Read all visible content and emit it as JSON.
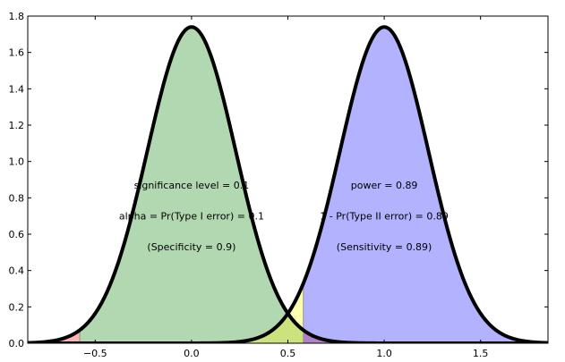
{
  "chart_data": {
    "type": "area",
    "title": "",
    "xlabel": "",
    "ylabel": "",
    "xlim": [
      -0.85,
      1.85
    ],
    "ylim": [
      0.0,
      1.8
    ],
    "x_ticks": [
      {
        "value": -0.5,
        "label": "−0.5"
      },
      {
        "value": 0.0,
        "label": "0.0"
      },
      {
        "value": 0.5,
        "label": "0.5"
      },
      {
        "value": 1.0,
        "label": "1.0"
      },
      {
        "value": 1.5,
        "label": "1.5"
      }
    ],
    "y_ticks": [
      {
        "value": 0.0,
        "label": "0.0"
      },
      {
        "value": 0.2,
        "label": "0.2"
      },
      {
        "value": 0.4,
        "label": "0.4"
      },
      {
        "value": 0.6,
        "label": "0.6"
      },
      {
        "value": 0.8,
        "label": "0.8"
      },
      {
        "value": 1.0,
        "label": "1.0"
      },
      {
        "value": 1.2,
        "label": "1.2"
      },
      {
        "value": 1.4,
        "label": "1.4"
      },
      {
        "value": 1.6,
        "label": "1.6"
      },
      {
        "value": 1.8,
        "label": "1.8"
      }
    ],
    "grid": false,
    "series": [
      {
        "mean": 0.0,
        "sd": 0.23,
        "peak": 1.74,
        "x_range": [
          -0.85,
          1.75
        ]
      },
      {
        "mean": 1.0,
        "sd": 0.23,
        "peak": 1.74,
        "x_range": [
          -0.75,
          1.85
        ]
      }
    ],
    "thresholds": {
      "lower": -0.58,
      "upper": 0.58
    },
    "regions": [
      {
        "name": "lower-tail",
        "color": "#ffb2b2",
        "x_range": [
          -0.85,
          -0.58
        ]
      },
      {
        "name": "null-acceptance",
        "color": "#b2d8b2",
        "x_range": [
          -0.58,
          0.58
        ]
      },
      {
        "name": "type-ii",
        "color": "#ffffb2",
        "x_range": [
          -0.58,
          0.58
        ]
      },
      {
        "name": "overlap",
        "color": "#cbe27e",
        "x_range": [
          -0.58,
          0.58
        ]
      },
      {
        "name": "power",
        "color": "#b2b2ff",
        "x_range": [
          0.58,
          1.85
        ]
      },
      {
        "name": "upper-tail",
        "color": "#b27fc8",
        "x_range": [
          0.58,
          1.85
        ]
      }
    ],
    "curve_color": "#000000",
    "annotations": [
      {
        "text": "significance level = 0.1",
        "x": 0.0,
        "y": 0.87
      },
      {
        "text": "alpha = Pr(Type I error) = 0.1",
        "x": 0.0,
        "y": 0.7
      },
      {
        "text": "(Specificity = 0.9)",
        "x": 0.0,
        "y": 0.53
      },
      {
        "text": "power = 0.89",
        "x": 1.0,
        "y": 0.87
      },
      {
        "text": "1 - Pr(Type II error) = 0.89",
        "x": 1.0,
        "y": 0.7
      },
      {
        "text": "(Sensitivity = 0.89)",
        "x": 1.0,
        "y": 0.53
      }
    ]
  }
}
